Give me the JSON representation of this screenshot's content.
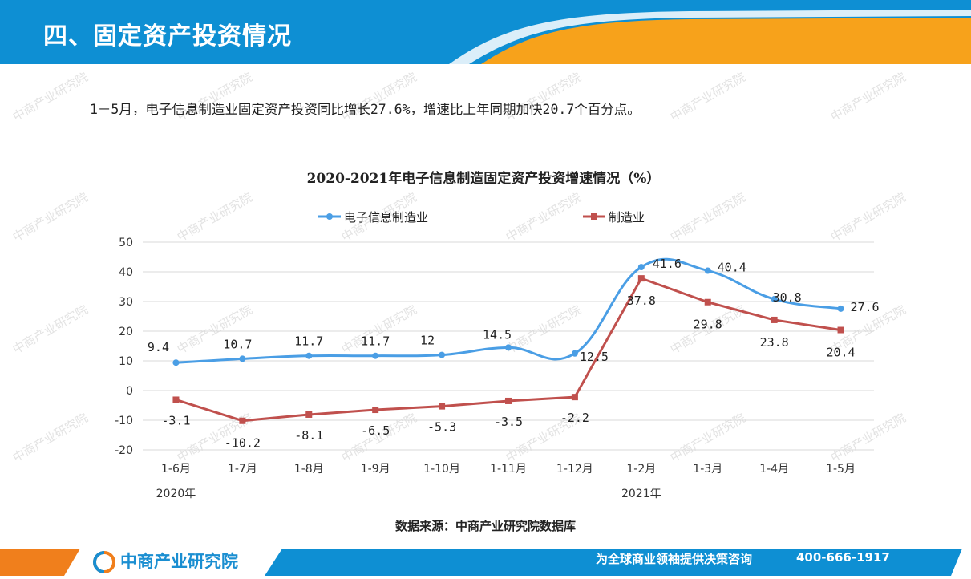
{
  "page": {
    "title": "四、固定资产投资情况",
    "intro": "1－5月，电子信息制造业固定资产投资同比增长27.6%，增速比上年同期加快20.7个百分点。",
    "source": "数据来源：中商产业研究院数据库",
    "brand": "中商产业研究院",
    "slogan": "为全球商业领袖提供决策咨询",
    "phone": "400-666-1917",
    "watermark": "中商产业研究院"
  },
  "colors": {
    "header_blue": "#0e8fd3",
    "header_orange": "#f7a21b",
    "footer_blue": "#0e8fd3",
    "footer_orange": "#f07f1c",
    "series_electronic": "#4a9ee5",
    "series_manufacturing": "#c0504d"
  },
  "chart_data": {
    "type": "line",
    "title": "2020-2021年电子信息制造固定资产投资增速情况（%）",
    "categories": [
      "1-6月",
      "1-7月",
      "1-8月",
      "1-9月",
      "1-10月",
      "1-11月",
      "1-12月",
      "1-2月",
      "1-3月",
      "1-4月",
      "1-5月"
    ],
    "year_labels": [
      {
        "label": "2020年",
        "category_index": 0
      },
      {
        "label": "2021年",
        "category_index": 7
      }
    ],
    "ylim": [
      -20,
      50
    ],
    "yticks": [
      -20,
      -10,
      0,
      10,
      20,
      30,
      40,
      50
    ],
    "grid": true,
    "legend_position": "top-center",
    "series": [
      {
        "name": "电子信息制造业",
        "values": [
          9.4,
          10.7,
          11.7,
          11.7,
          12,
          14.5,
          12.5,
          41.6,
          40.4,
          30.8,
          27.6
        ],
        "labels": [
          "9.4",
          "10.7",
          "11.7",
          "11.7",
          "12",
          "14.5",
          "12.5",
          "41.6",
          "40.4",
          "30.8",
          "27.6"
        ],
        "color": "#4a9ee5",
        "smooth": true
      },
      {
        "name": "制造业",
        "values": [
          -3.1,
          -10.2,
          -8.1,
          -6.5,
          -5.3,
          -3.5,
          -2.2,
          37.8,
          29.8,
          23.8,
          20.4
        ],
        "labels": [
          "-3.1",
          "-10.2",
          "-8.1",
          "-6.5",
          "-5.3",
          "-3.5",
          "-2.2",
          "37.8",
          "29.8",
          "23.8",
          "20.4"
        ],
        "color": "#c0504d",
        "smooth": false
      }
    ]
  }
}
